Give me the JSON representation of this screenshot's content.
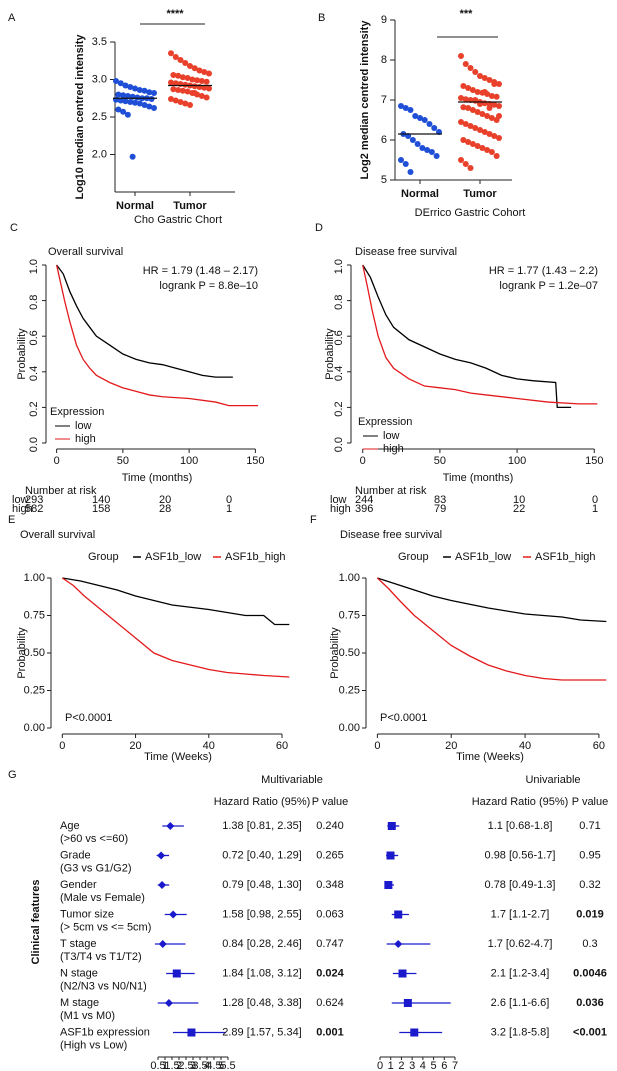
{
  "chart_data": [
    {
      "type": "scatter",
      "panel": "A",
      "significance": "****",
      "ylabel": "Log10 median centred intensity",
      "xlabel": "Cho Gastric Chort",
      "categories": [
        "Normal",
        "Tumor"
      ],
      "ylim": [
        1.5,
        3.5
      ],
      "yticks": [
        {
          "value": 2,
          "label": "2.0"
        },
        2.5,
        {
          "value": 3,
          "label": "3.0"
        },
        3.5
      ],
      "series": [
        {
          "name": "Normal",
          "color": "#1f4fd6",
          "median": 2.75,
          "values": [
            2.98,
            2.95,
            2.92,
            2.9,
            2.88,
            2.86,
            2.85,
            2.83,
            2.82,
            2.8,
            2.79,
            2.78,
            2.77,
            2.76,
            2.75,
            2.75,
            2.74,
            2.73,
            2.72,
            2.71,
            2.7,
            2.69,
            2.68,
            2.66,
            2.64,
            2.62,
            2.6,
            2.57,
            2.53,
            1.97
          ]
        },
        {
          "name": "Tumor",
          "color": "#e8402a",
          "median": 2.92,
          "values": [
            3.35,
            3.3,
            3.26,
            3.22,
            3.18,
            3.15,
            3.12,
            3.1,
            3.08,
            3.06,
            3.05,
            3.03,
            3.02,
            3.0,
            2.99,
            2.98,
            2.97,
            2.96,
            2.95,
            2.94,
            2.93,
            2.92,
            2.91,
            2.9,
            2.89,
            2.88,
            2.87,
            2.86,
            2.85,
            2.84,
            2.82,
            2.8,
            2.78,
            2.76,
            2.74,
            2.72,
            2.7,
            2.68,
            2.66,
            2.82
          ]
        }
      ]
    },
    {
      "type": "scatter",
      "panel": "B",
      "significance": "***",
      "ylabel": "Log2 median centred intensity",
      "xlabel": "DErrico Gastric Cohort",
      "categories": [
        "Normal",
        "Tumor"
      ],
      "ylim": [
        5,
        9
      ],
      "yticks": [
        5,
        6,
        7,
        8,
        9
      ],
      "series": [
        {
          "name": "Normal",
          "color": "#1f4fd6",
          "median": 6.15,
          "values": [
            6.85,
            6.8,
            6.75,
            6.6,
            6.55,
            6.5,
            6.4,
            6.3,
            6.2,
            6.15,
            6.1,
            6.0,
            5.9,
            5.8,
            5.75,
            5.7,
            5.6,
            5.5,
            5.4,
            5.2
          ]
        },
        {
          "name": "Tumor",
          "color": "#e8402a",
          "median": 6.95,
          "values": [
            8.1,
            7.9,
            7.8,
            7.7,
            7.6,
            7.55,
            7.5,
            7.45,
            7.4,
            7.35,
            7.3,
            7.25,
            7.2,
            7.18,
            7.15,
            7.1,
            7.08,
            7.05,
            7.02,
            7.0,
            6.98,
            6.95,
            6.92,
            6.9,
            6.88,
            6.85,
            6.82,
            6.8,
            6.75,
            6.7,
            6.65,
            6.6,
            6.55,
            6.5,
            6.45,
            6.4,
            6.35,
            6.3,
            6.25,
            6.2,
            6.15,
            6.1,
            6.05,
            6.0,
            5.95,
            5.9,
            5.85,
            5.8,
            5.75,
            5.7,
            5.6,
            5.5,
            5.4,
            5.3,
            7.0,
            6.9,
            7.2,
            6.8,
            7.4,
            6.6
          ]
        }
      ]
    },
    {
      "type": "km",
      "panel": "C",
      "title": "Overall survival",
      "ylabel": "Probability",
      "xlabel": "Time (months)",
      "annotations": [
        "HR = 1.79 (1.48 – 2.17)",
        "logrank P = 8.8e–10"
      ],
      "legend_title": "Expression",
      "xlim": [
        -5,
        155
      ],
      "xticks": [
        0,
        50,
        100,
        150
      ],
      "ylim": [
        0,
        1
      ],
      "yticks": [
        {
          "value": 0,
          "label": "0.0"
        },
        0.2,
        0.4,
        0.6,
        0.8,
        {
          "value": 1,
          "label": "1.0"
        }
      ],
      "series": [
        {
          "name": "low",
          "color": "#000000",
          "x": [
            0,
            5,
            10,
            15,
            20,
            25,
            30,
            40,
            50,
            60,
            70,
            80,
            90,
            100,
            110,
            120,
            133
          ],
          "values": [
            1,
            0.95,
            0.85,
            0.77,
            0.7,
            0.65,
            0.6,
            0.55,
            0.5,
            0.47,
            0.45,
            0.44,
            0.42,
            0.4,
            0.38,
            0.37,
            0.37
          ]
        },
        {
          "name": "high",
          "color": "#e31a1c",
          "x": [
            0,
            3,
            6,
            10,
            15,
            20,
            25,
            30,
            40,
            50,
            60,
            70,
            80,
            100,
            120,
            130,
            152
          ],
          "values": [
            1,
            0.9,
            0.8,
            0.68,
            0.55,
            0.47,
            0.42,
            0.38,
            0.34,
            0.31,
            0.29,
            0.27,
            0.26,
            0.25,
            0.23,
            0.21,
            0.21
          ]
        }
      ],
      "risk_table": {
        "title": "Number at risk",
        "rows": [
          {
            "name": "low",
            "values": [
              293,
              140,
              20,
              0
            ]
          },
          {
            "name": "high",
            "values": [
              582,
              158,
              28,
              1
            ]
          }
        ]
      }
    },
    {
      "type": "km",
      "panel": "D",
      "title": "Disease free survival",
      "ylabel": "Probability",
      "xlabel": "Time (months)",
      "annotations": [
        "HR = 1.77 (1.43 – 2.2)",
        "logrank P = 1.2e–07"
      ],
      "legend_title": "Expression",
      "xlim": [
        -5,
        155
      ],
      "xticks": [
        0,
        50,
        100,
        150
      ],
      "ylim": [
        0,
        1
      ],
      "yticks": [
        {
          "value": 0,
          "label": "0.0"
        },
        0.2,
        0.4,
        0.6,
        0.8,
        {
          "value": 1,
          "label": "1.0"
        }
      ],
      "series": [
        {
          "name": "low",
          "color": "#000000",
          "x": [
            0,
            5,
            10,
            15,
            20,
            30,
            40,
            50,
            60,
            70,
            80,
            90,
            100,
            110,
            125,
            126,
            135
          ],
          "values": [
            1,
            0.93,
            0.82,
            0.72,
            0.65,
            0.58,
            0.54,
            0.5,
            0.47,
            0.45,
            0.42,
            0.38,
            0.36,
            0.35,
            0.34,
            0.2,
            0.2
          ]
        },
        {
          "name": "high",
          "color": "#e31a1c",
          "x": [
            0,
            3,
            6,
            10,
            15,
            20,
            30,
            40,
            50,
            60,
            70,
            80,
            100,
            120,
            140,
            152
          ],
          "values": [
            1,
            0.88,
            0.75,
            0.6,
            0.48,
            0.42,
            0.36,
            0.32,
            0.31,
            0.3,
            0.28,
            0.27,
            0.25,
            0.23,
            0.22,
            0.22
          ]
        }
      ],
      "risk_table": {
        "title": "Number at risk",
        "rows": [
          {
            "name": "low",
            "values": [
              244,
              83,
              10,
              0
            ]
          },
          {
            "name": "high",
            "values": [
              396,
              79,
              22,
              1
            ]
          }
        ]
      }
    },
    {
      "type": "km",
      "panel": "E",
      "title": "Overall survival",
      "ylabel": "Probability",
      "xlabel": "Time (Weeks)",
      "annotations": [
        "P<0.0001"
      ],
      "legend_title": "Group",
      "xlim": [
        -2,
        63
      ],
      "xticks": [
        0,
        20,
        40,
        60
      ],
      "ylim": [
        0,
        1
      ],
      "yticks": [
        {
          "value": 0,
          "label": "0.00"
        },
        {
          "value": 0.25,
          "label": "0.25"
        },
        {
          "value": 0.5,
          "label": "0.50"
        },
        {
          "value": 0.75,
          "label": "0.75"
        },
        {
          "value": 1,
          "label": "1.00"
        }
      ],
      "series": [
        {
          "name": "ASF1b_low",
          "color": "#000000",
          "x": [
            0,
            5,
            10,
            15,
            20,
            25,
            30,
            40,
            50,
            55,
            58,
            62
          ],
          "values": [
            1,
            0.98,
            0.95,
            0.92,
            0.88,
            0.85,
            0.82,
            0.79,
            0.75,
            0.75,
            0.69,
            0.69
          ]
        },
        {
          "name": "ASF1b_high",
          "color": "#e31a1c",
          "x": [
            0,
            3,
            6,
            10,
            15,
            20,
            25,
            30,
            35,
            40,
            45,
            50,
            55,
            62
          ],
          "values": [
            1,
            0.95,
            0.88,
            0.8,
            0.7,
            0.6,
            0.5,
            0.45,
            0.42,
            0.39,
            0.37,
            0.36,
            0.35,
            0.34
          ]
        }
      ]
    },
    {
      "type": "km",
      "panel": "F",
      "title": "Disease free survival",
      "ylabel": "Probability",
      "xlabel": "Time (Weeks)",
      "annotations": [
        "P<0.0001"
      ],
      "legend_title": "Group",
      "xlim": [
        -2,
        63
      ],
      "xticks": [
        0,
        20,
        40,
        60
      ],
      "ylim": [
        0,
        1
      ],
      "yticks": [
        {
          "value": 0,
          "label": "0.00"
        },
        {
          "value": 0.25,
          "label": "0.25"
        },
        {
          "value": 0.5,
          "label": "0.50"
        },
        {
          "value": 0.75,
          "label": "0.75"
        },
        {
          "value": 1,
          "label": "1.00"
        }
      ],
      "series": [
        {
          "name": "ASF1b_low",
          "color": "#000000",
          "x": [
            0,
            5,
            10,
            15,
            20,
            30,
            40,
            50,
            55,
            62
          ],
          "values": [
            1,
            0.96,
            0.92,
            0.88,
            0.85,
            0.8,
            0.76,
            0.74,
            0.72,
            0.71
          ]
        },
        {
          "name": "ASF1b_high",
          "color": "#e31a1c",
          "x": [
            0,
            3,
            6,
            10,
            15,
            20,
            25,
            30,
            35,
            40,
            45,
            50,
            62
          ],
          "values": [
            1,
            0.93,
            0.85,
            0.75,
            0.65,
            0.55,
            0.48,
            0.42,
            0.38,
            0.35,
            0.33,
            0.32,
            0.32
          ]
        }
      ]
    },
    {
      "type": "forest",
      "panel": "G",
      "side_title": "Clinical features",
      "rows": [
        {
          "label": "Age",
          "sublabel": "(>60 vs <=60)"
        },
        {
          "label": "Grade",
          "sublabel": "(G3 vs G1/G2)"
        },
        {
          "label": "Gender",
          "sublabel": "(Male vs Female)"
        },
        {
          "label": "Tumor size",
          "sublabel": "(> 5cm vs <= 5cm)"
        },
        {
          "label": "T stage",
          "sublabel": "(T3/T4 vs T1/T2)"
        },
        {
          "label": "N stage",
          "sublabel": "(N2/N3 vs N0/N1)"
        },
        {
          "label": "M stage",
          "sublabel": "(M1 vs M0)"
        },
        {
          "label": "ASF1b expression",
          "sublabel": "(High vs Low)"
        }
      ],
      "sections": [
        {
          "title": "Multivariable",
          "columns": [
            "Hazard Ratio (95%)",
            "P value"
          ],
          "color": "#1a1acc",
          "xlim": [
            0.5,
            5.5
          ],
          "xticks": [
            0.5,
            1,
            1.5,
            2,
            2.5,
            3,
            3.5,
            4,
            4.5,
            5,
            5.5
          ],
          "hr": [
            1.38,
            0.72,
            0.79,
            1.58,
            0.84,
            1.84,
            1.28,
            2.89
          ],
          "lo": [
            0.81,
            0.4,
            0.48,
            0.98,
            0.28,
            1.08,
            0.48,
            1.57
          ],
          "hi": [
            2.35,
            1.29,
            1.3,
            2.55,
            2.46,
            3.12,
            3.38,
            5.34
          ],
          "hr_labels": [
            "1.38 [0.81, 2.35]",
            "0.72 [0.40, 1.29]",
            "0.79 [0.48, 1.30]",
            "1.58 [0.98, 2.55]",
            "0.84 [0.28, 2.46]",
            "1.84 [1.08, 3.12]",
            "1.28 [0.48, 3.38]",
            "2.89 [1.57, 5.34]"
          ],
          "p_labels": [
            "0.240",
            "0.265",
            "0.348",
            "0.063",
            "0.747",
            "0.024",
            "0.624",
            "0.001"
          ],
          "bold": [
            false,
            false,
            false,
            false,
            false,
            true,
            false,
            true
          ],
          "markers": [
            "diamond",
            "diamond",
            "diamond",
            "diamond",
            "diamond",
            "square",
            "diamond",
            "square"
          ]
        },
        {
          "title": "Univariable",
          "columns": [
            "Hazard Ratio (95%)",
            "P value"
          ],
          "color": "#1a1acc",
          "xlim": [
            0,
            7
          ],
          "xticks": [
            0,
            1,
            2,
            3,
            4,
            5,
            6,
            7
          ],
          "hr": [
            1.1,
            0.98,
            0.78,
            1.7,
            1.7,
            2.1,
            2.6,
            3.2
          ],
          "lo": [
            0.68,
            0.56,
            0.49,
            1.1,
            0.62,
            1.2,
            1.1,
            1.8
          ],
          "hi": [
            1.8,
            1.7,
            1.3,
            2.7,
            4.7,
            3.4,
            6.6,
            5.8
          ],
          "hr_labels": [
            "1.1 [0.68-1.8]",
            "0.98 [0.56-1.7]",
            "0.78 [0.49-1.3]",
            "1.7 [1.1-2.7]",
            "1.7 [0.62-4.7]",
            "2.1 [1.2-3.4]",
            "2.6 [1.1-6.6]",
            "3.2 [1.8-5.8]"
          ],
          "p_labels": [
            "0.71",
            "0.95",
            "0.32",
            "0.019",
            "0.3",
            "0.0046",
            "0.036",
            "<0.001"
          ],
          "bold": [
            false,
            false,
            false,
            true,
            false,
            true,
            true,
            true
          ],
          "markers": [
            "square",
            "square",
            "square",
            "square",
            "diamond",
            "square",
            "square",
            "square"
          ]
        }
      ]
    }
  ]
}
